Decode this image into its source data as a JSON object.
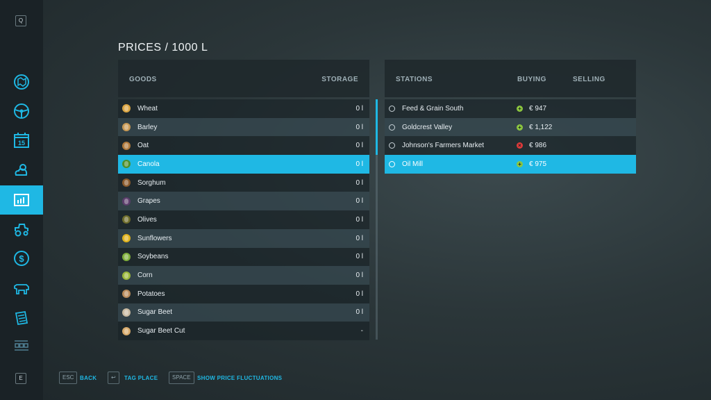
{
  "sidebar": {
    "top_key": "Q",
    "bottom_key": "E",
    "items": [
      {
        "icon": "map-icon"
      },
      {
        "icon": "steering-wheel-icon"
      },
      {
        "icon": "calendar-icon",
        "label": "15"
      },
      {
        "icon": "weather-icon"
      },
      {
        "icon": "prices-icon",
        "active": true
      },
      {
        "icon": "vehicles-icon"
      },
      {
        "icon": "finances-icon"
      },
      {
        "icon": "animals-icon"
      },
      {
        "icon": "contracts-icon"
      },
      {
        "icon": "production-icon"
      }
    ]
  },
  "title": "PRICES / 1000 L",
  "goods": {
    "header": {
      "goods": "GOODS",
      "storage": "STORAGE"
    },
    "items": [
      {
        "name": "Wheat",
        "storage": "0 l",
        "color": "#d9a441"
      },
      {
        "name": "Barley",
        "storage": "0 l",
        "color": "#c99a55"
      },
      {
        "name": "Oat",
        "storage": "0 l",
        "color": "#b07a3c"
      },
      {
        "name": "Canola",
        "storage": "0 l",
        "color": "#4d8f2c"
      },
      {
        "name": "Sorghum",
        "storage": "0 l",
        "color": "#8a5a2b"
      },
      {
        "name": "Grapes",
        "storage": "0 l",
        "color": "#5b3d6b"
      },
      {
        "name": "Olives",
        "storage": "0 l",
        "color": "#6d6b2a"
      },
      {
        "name": "Sunflowers",
        "storage": "0 l",
        "color": "#e0b21c"
      },
      {
        "name": "Soybeans",
        "storage": "0 l",
        "color": "#7fae3b"
      },
      {
        "name": "Corn",
        "storage": "0 l",
        "color": "#9bb83a"
      },
      {
        "name": "Potatoes",
        "storage": "0 l",
        "color": "#b88a5a"
      },
      {
        "name": "Sugar Beet",
        "storage": "0 l",
        "color": "#c8b9a0"
      },
      {
        "name": "Sugar Beet Cut",
        "storage": "-",
        "color": "#d6a96a"
      }
    ],
    "selected_index": 3
  },
  "stations": {
    "header": {
      "stations": "STATIONS",
      "buying": "BUYING",
      "selling": "SELLING"
    },
    "items": [
      {
        "name": "Feed & Grain South",
        "trend": "up",
        "price": "€ 947"
      },
      {
        "name": "Goldcrest Valley",
        "trend": "up",
        "price": "€ 1,122"
      },
      {
        "name": "Johnson's Farmers Market",
        "trend": "down",
        "price": "€ 986"
      },
      {
        "name": "Oil Mill",
        "trend": "up",
        "price": "€ 975"
      }
    ],
    "selected_index": 3
  },
  "footer": {
    "actions": [
      {
        "key": "ESC",
        "label": "BACK"
      },
      {
        "key": "↩",
        "label": "TAG PLACE"
      },
      {
        "key": "SPACE",
        "label": "SHOW PRICE FLUCTUATIONS"
      }
    ]
  },
  "colors": {
    "accent": "#1fb8e4",
    "trend_up": "#8cc63f",
    "trend_down": "#e03a3a"
  }
}
